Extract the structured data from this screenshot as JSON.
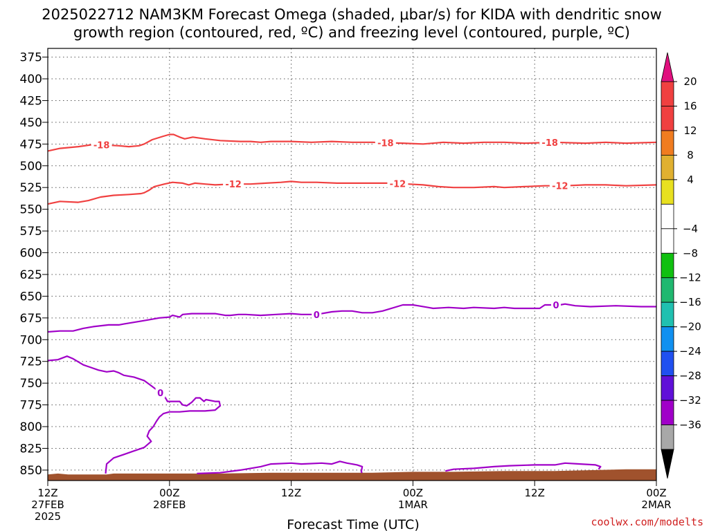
{
  "chart_data": {
    "type": "line",
    "title_line1": "2025022712 NAM3KM Forecast Omega (shaded, μbar/s) for KIDA with dendritic snow",
    "title_line2": "growth region (contoured, red, ºC) and freezing level (contoured, purple, ºC)",
    "xlabel": "Forecast Time (UTC)",
    "credit": "coolwx.com/modelts",
    "y_axis": {
      "label": "",
      "inverted": true,
      "ylim": [
        365,
        862
      ],
      "ticks": [
        375,
        400,
        425,
        450,
        475,
        500,
        525,
        550,
        575,
        600,
        625,
        650,
        675,
        700,
        725,
        750,
        775,
        800,
        825,
        850
      ]
    },
    "x_axis": {
      "xlim": [
        0,
        60
      ],
      "ticks": [
        {
          "hour": 0,
          "lines": [
            "12Z",
            "27FEB",
            "2025"
          ]
        },
        {
          "hour": 12,
          "lines": [
            "00Z",
            "28FEB"
          ]
        },
        {
          "hour": 24,
          "lines": [
            "12Z"
          ]
        },
        {
          "hour": 36,
          "lines": [
            "00Z",
            "1MAR"
          ]
        },
        {
          "hour": 48,
          "lines": [
            "12Z"
          ]
        },
        {
          "hour": 60,
          "lines": [
            "00Z",
            "2MAR"
          ]
        }
      ]
    },
    "grid": true,
    "terrain": {
      "color": "#a0522d",
      "surface": [
        [
          0,
          855
        ],
        [
          1,
          854
        ],
        [
          2,
          855
        ],
        [
          5.8,
          855
        ],
        [
          6.5,
          854
        ],
        [
          13,
          854
        ],
        [
          17,
          854
        ],
        [
          22,
          853
        ],
        [
          26,
          853
        ],
        [
          32,
          853
        ],
        [
          36,
          852
        ],
        [
          40,
          852
        ],
        [
          45,
          851
        ],
        [
          50,
          851
        ],
        [
          54,
          850
        ],
        [
          57,
          849
        ],
        [
          60,
          849
        ]
      ]
    },
    "series": [
      {
        "group": "dendritic",
        "label": "-18",
        "color": "#f04040",
        "label_positions": [
          5.3,
          33.3,
          49.5
        ],
        "points": [
          [
            0,
            483
          ],
          [
            1.2,
            480
          ],
          [
            3,
            478
          ],
          [
            4.2,
            476
          ],
          [
            5.5,
            476
          ],
          [
            7,
            477
          ],
          [
            8,
            478
          ],
          [
            9,
            477
          ],
          [
            9.5,
            475
          ],
          [
            10.3,
            470
          ],
          [
            11.4,
            466
          ],
          [
            12,
            464
          ],
          [
            12.4,
            464
          ],
          [
            13,
            467
          ],
          [
            13.5,
            469
          ],
          [
            14.3,
            467
          ],
          [
            15.5,
            469
          ],
          [
            17,
            471
          ],
          [
            19,
            472
          ],
          [
            20,
            472
          ],
          [
            21,
            473
          ],
          [
            22,
            472
          ],
          [
            24,
            472
          ],
          [
            26,
            473
          ],
          [
            28,
            472
          ],
          [
            30,
            473
          ],
          [
            32,
            473
          ],
          [
            35,
            474
          ],
          [
            37,
            475
          ],
          [
            39,
            473
          ],
          [
            41,
            474
          ],
          [
            43,
            473
          ],
          [
            45,
            473
          ],
          [
            47,
            474
          ],
          [
            50,
            473
          ],
          [
            53,
            474
          ],
          [
            55,
            473
          ],
          [
            57,
            474
          ],
          [
            60,
            473
          ]
        ]
      },
      {
        "group": "dendritic",
        "label": "-12",
        "color": "#f04040",
        "label_positions": [
          18.3,
          34.5,
          50.5
        ],
        "points": [
          [
            0,
            544
          ],
          [
            1.2,
            541
          ],
          [
            3,
            542
          ],
          [
            4,
            540
          ],
          [
            5.2,
            536
          ],
          [
            6.5,
            534
          ],
          [
            8,
            533
          ],
          [
            9.2,
            532
          ],
          [
            9.5,
            531
          ],
          [
            10,
            528
          ],
          [
            10.5,
            524
          ],
          [
            11.5,
            521
          ],
          [
            12.3,
            519
          ],
          [
            13.3,
            520
          ],
          [
            13.9,
            522
          ],
          [
            14.5,
            520
          ],
          [
            15.5,
            521
          ],
          [
            16.5,
            522
          ],
          [
            18.3,
            521
          ],
          [
            20,
            521
          ],
          [
            21.5,
            520
          ],
          [
            23,
            519
          ],
          [
            24,
            518
          ],
          [
            25,
            519
          ],
          [
            26.5,
            519
          ],
          [
            28.5,
            520
          ],
          [
            31,
            520
          ],
          [
            32.5,
            520
          ],
          [
            34,
            520
          ],
          [
            35.5,
            521
          ],
          [
            37,
            522
          ],
          [
            38.5,
            524
          ],
          [
            40,
            525
          ],
          [
            42,
            525
          ],
          [
            44,
            524
          ],
          [
            45,
            525
          ],
          [
            47,
            524
          ],
          [
            49,
            523
          ],
          [
            51,
            523
          ],
          [
            53,
            522
          ],
          [
            55,
            522
          ],
          [
            57,
            523
          ],
          [
            60,
            522
          ]
        ]
      },
      {
        "group": "freezing",
        "label": "0",
        "color": "#a000c8",
        "label_positions": [
          26.5,
          50.1
        ],
        "points": [
          [
            0,
            691
          ],
          [
            1.2,
            690
          ],
          [
            2.5,
            690
          ],
          [
            3.5,
            687
          ],
          [
            4.5,
            685
          ],
          [
            6,
            683
          ],
          [
            7,
            683
          ],
          [
            7.5,
            682
          ],
          [
            9,
            679
          ],
          [
            10,
            677
          ],
          [
            11,
            675
          ],
          [
            12,
            674
          ],
          [
            12.3,
            672
          ],
          [
            13,
            674
          ],
          [
            13.3,
            671
          ],
          [
            14.2,
            670
          ],
          [
            15.5,
            670
          ],
          [
            16.5,
            670
          ],
          [
            17.5,
            672
          ],
          [
            18,
            672
          ],
          [
            18.8,
            671
          ],
          [
            19.5,
            671
          ],
          [
            21,
            672
          ],
          [
            22.5,
            671
          ],
          [
            24,
            670
          ],
          [
            25,
            671
          ],
          [
            26.5,
            671
          ],
          [
            28,
            668
          ],
          [
            29,
            667
          ],
          [
            30,
            667
          ],
          [
            31,
            669
          ],
          [
            32,
            669
          ],
          [
            33,
            667
          ],
          [
            35,
            660
          ],
          [
            36,
            660
          ],
          [
            36.5,
            661
          ],
          [
            37.5,
            663
          ],
          [
            38,
            664
          ],
          [
            39.5,
            663
          ],
          [
            41,
            664
          ],
          [
            42,
            663
          ],
          [
            44,
            664
          ],
          [
            45,
            663
          ],
          [
            46,
            664
          ],
          [
            48.5,
            664
          ],
          [
            49,
            660
          ],
          [
            50.5,
            660
          ],
          [
            51,
            659
          ],
          [
            52,
            661
          ],
          [
            53.5,
            662
          ],
          [
            56,
            661
          ],
          [
            58.5,
            662
          ],
          [
            60,
            662
          ]
        ]
      },
      {
        "group": "freezing",
        "label": "0",
        "color": "#a000c8",
        "label_positions": [
          11.1
        ],
        "points": [
          [
            0,
            724
          ],
          [
            1,
            723
          ],
          [
            1.9,
            719
          ],
          [
            2.5,
            722
          ],
          [
            3.5,
            729
          ],
          [
            5,
            735
          ],
          [
            5.8,
            737
          ],
          [
            6.5,
            736
          ],
          [
            7,
            738
          ],
          [
            7.5,
            741
          ],
          [
            8.5,
            743
          ],
          [
            9.5,
            747
          ],
          [
            10.2,
            753
          ],
          [
            11,
            760
          ],
          [
            11.5,
            765
          ],
          [
            11.8,
            771
          ],
          [
            12.5,
            771
          ],
          [
            13,
            771
          ],
          [
            13.3,
            775
          ],
          [
            13.7,
            776
          ],
          [
            14.2,
            772
          ],
          [
            14.6,
            767
          ],
          [
            15,
            767
          ],
          [
            15.4,
            771
          ],
          [
            15.6,
            769
          ],
          [
            16.5,
            771
          ],
          [
            16.9,
            771
          ],
          [
            17,
            776
          ],
          [
            16.5,
            781
          ],
          [
            15.5,
            782
          ],
          [
            14,
            782
          ],
          [
            13,
            783
          ],
          [
            12.4,
            783
          ],
          [
            12,
            783
          ],
          [
            11.4,
            785
          ],
          [
            11,
            789
          ],
          [
            10.7,
            794
          ],
          [
            10.4,
            800
          ],
          [
            10,
            805
          ],
          [
            9.8,
            811
          ],
          [
            10.2,
            817
          ],
          [
            9.5,
            824
          ],
          [
            8.5,
            828
          ],
          [
            7.5,
            832
          ],
          [
            6.5,
            836
          ],
          [
            5.8,
            843
          ],
          [
            5.7,
            854
          ]
        ]
      },
      {
        "group": "freezing",
        "label": "",
        "color": "#a000c8",
        "label_positions": [],
        "points": [
          [
            14.7,
            854
          ],
          [
            17,
            853
          ],
          [
            19,
            850
          ],
          [
            21,
            846
          ],
          [
            22,
            843
          ],
          [
            24,
            842
          ],
          [
            25,
            843
          ],
          [
            27,
            842
          ],
          [
            28,
            843
          ],
          [
            28.8,
            840
          ],
          [
            29.5,
            842
          ],
          [
            30.5,
            844
          ],
          [
            31,
            846
          ],
          [
            30.9,
            852
          ],
          [
            31,
            853
          ]
        ]
      },
      {
        "group": "freezing",
        "label": "",
        "color": "#a000c8",
        "label_positions": [],
        "points": [
          [
            39.2,
            851
          ],
          [
            40,
            849
          ],
          [
            42,
            848
          ],
          [
            44,
            846
          ],
          [
            45.5,
            845
          ],
          [
            48,
            844
          ],
          [
            50,
            844
          ],
          [
            51,
            842
          ],
          [
            52.5,
            843
          ],
          [
            54,
            844
          ],
          [
            54.5,
            846
          ],
          [
            54.3,
            849
          ]
        ]
      }
    ],
    "colorbar": {
      "title": "",
      "top_arrow": {
        "color": "#e0107e"
      },
      "bottom_arrow": {
        "color": "#000000"
      },
      "bins": [
        {
          "color": "#f04040"
        },
        {
          "color": "#f04040"
        },
        {
          "color": "#f07c20"
        },
        {
          "color": "#e0b030"
        },
        {
          "color": "#e8e020"
        },
        {
          "color": "#ffffff"
        },
        {
          "color": "#ffffff"
        },
        {
          "color": "#10c010"
        },
        {
          "color": "#20b870"
        },
        {
          "color": "#20c0b0"
        },
        {
          "color": "#1090f0"
        },
        {
          "color": "#2050f0"
        },
        {
          "color": "#6010d8"
        },
        {
          "color": "#a000c8"
        },
        {
          "color": "#a8a8a8"
        }
      ],
      "labels": [
        "20",
        "16",
        "12",
        "8",
        "4",
        "−4",
        "−8",
        "−12",
        "−16",
        "−20",
        "−24",
        "−28",
        "−32",
        "−36"
      ]
    }
  }
}
